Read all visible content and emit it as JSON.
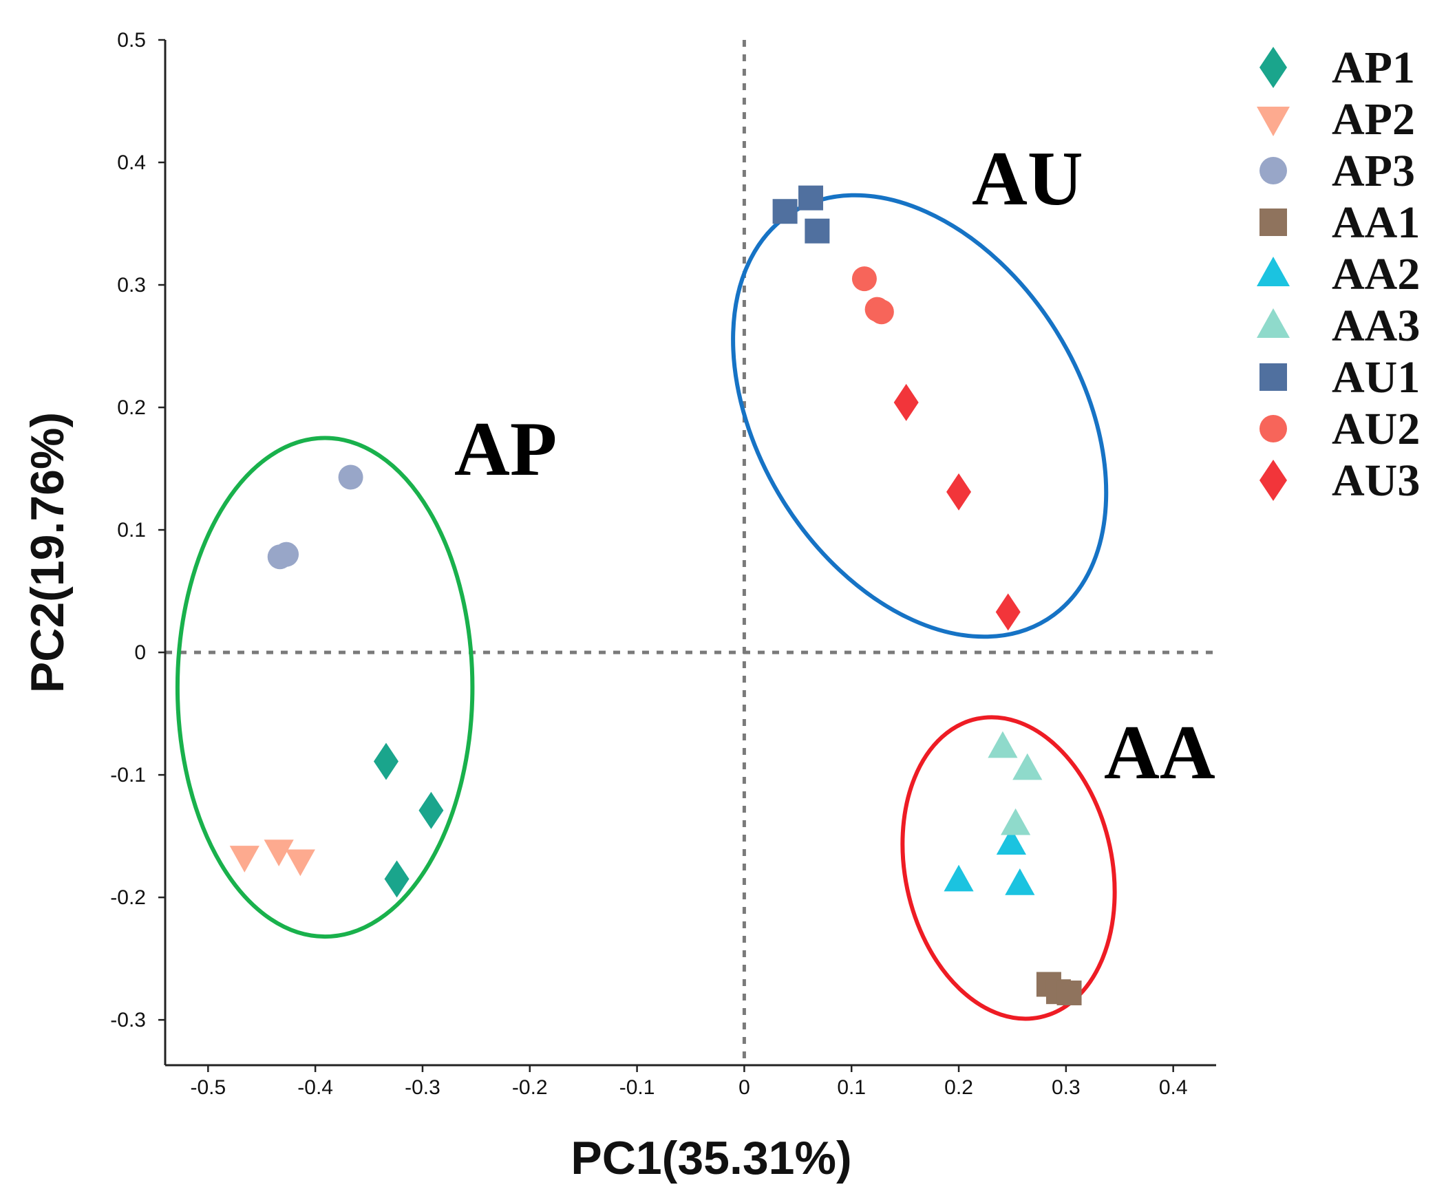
{
  "chart_data": {
    "type": "scatter",
    "title": "",
    "xlabel": "PC1(35.31%)",
    "ylabel": "PC2(19.76%)",
    "xlim": [
      -0.54,
      0.44
    ],
    "ylim": [
      -0.337,
      0.5
    ],
    "x_ticks": [
      -0.5,
      -0.4,
      -0.3,
      -0.2,
      -0.1,
      0,
      0.1,
      0.2,
      0.3,
      0.4
    ],
    "x_tick_labels": [
      "-0.5",
      "-0.4",
      "-0.3",
      "-0.2",
      "-0.1",
      "0",
      "0.1",
      "0.2",
      "0.3",
      "0.4"
    ],
    "y_ticks": [
      -0.3,
      -0.2,
      -0.1,
      0,
      0.1,
      0.2,
      0.3,
      0.4,
      0.5
    ],
    "y_tick_labels": [
      "-0.3",
      "-0.2",
      "-0.1",
      "0",
      "0.1",
      "0.2",
      "0.3",
      "0.4",
      "0.5"
    ],
    "zero_lines": {
      "x": 0,
      "y": 0
    },
    "legend_position": "right",
    "series": [
      {
        "name": "AP1",
        "marker": "diamond",
        "color": "#1aa58c",
        "points": [
          [
            -0.334,
            -0.089
          ],
          [
            -0.292,
            -0.129
          ],
          [
            -0.324,
            -0.185
          ]
        ]
      },
      {
        "name": "AP2",
        "marker": "triangle-down",
        "color": "#fdaa8f",
        "points": [
          [
            -0.466,
            -0.167
          ],
          [
            -0.434,
            -0.162
          ],
          [
            -0.414,
            -0.17
          ]
        ]
      },
      {
        "name": "AP3",
        "marker": "circle",
        "color": "#98a6c8",
        "points": [
          [
            -0.367,
            0.143
          ],
          [
            -0.427,
            0.08
          ],
          [
            -0.433,
            0.078
          ]
        ]
      },
      {
        "name": "AA1",
        "marker": "square",
        "color": "#8f735d",
        "points": [
          [
            0.284,
            -0.271
          ],
          [
            0.293,
            -0.277
          ],
          [
            0.303,
            -0.278
          ]
        ]
      },
      {
        "name": "AA2",
        "marker": "triangle-up",
        "color": "#1bc3e0",
        "points": [
          [
            0.2,
            -0.186
          ],
          [
            0.249,
            -0.156
          ],
          [
            0.257,
            -0.189
          ]
        ]
      },
      {
        "name": "AA3",
        "marker": "triangle-up",
        "color": "#8fdacb",
        "points": [
          [
            0.241,
            -0.077
          ],
          [
            0.264,
            -0.095
          ],
          [
            0.253,
            -0.14
          ]
        ]
      },
      {
        "name": "AU1",
        "marker": "square",
        "color": "#50709f",
        "points": [
          [
            0.038,
            0.36
          ],
          [
            0.062,
            0.371
          ],
          [
            0.068,
            0.344
          ]
        ]
      },
      {
        "name": "AU2",
        "marker": "circle",
        "color": "#f7655a",
        "points": [
          [
            0.112,
            0.305
          ],
          [
            0.124,
            0.28
          ],
          [
            0.128,
            0.278
          ]
        ]
      },
      {
        "name": "AU3",
        "marker": "diamond",
        "color": "#f2353a",
        "points": [
          [
            0.151,
            0.204
          ],
          [
            0.2,
            0.131
          ],
          [
            0.246,
            0.033
          ]
        ]
      }
    ],
    "clusters": [
      {
        "label": "AP",
        "color": "#19b14c",
        "center": [
          -0.391,
          -0.0285
        ],
        "radius_x": 0.1375,
        "radius_y": 0.2035
      },
      {
        "label": "AU",
        "color": "#1673c5",
        "center": [
          0.1635,
          0.193
        ],
        "radius_x": 0.15,
        "radius_y": 0.196,
        "rotation_deg": -32
      },
      {
        "label": "AA",
        "color": "#ee1c24",
        "center": [
          0.2465,
          -0.176
        ],
        "radius_x": 0.0965,
        "radius_y": 0.1245,
        "rotation_deg": -12
      }
    ]
  }
}
